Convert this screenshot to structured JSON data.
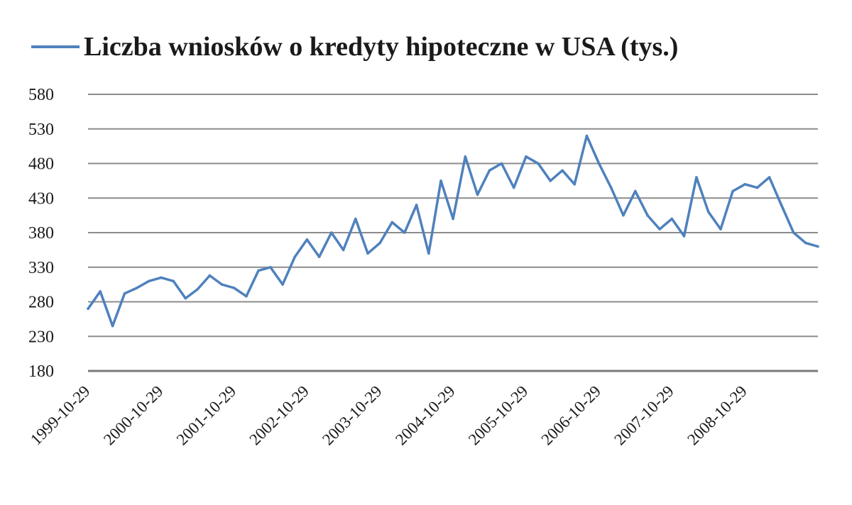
{
  "chart_data": {
    "type": "line",
    "title": "",
    "xlabel": "",
    "ylabel": "",
    "ylim": [
      180,
      580
    ],
    "yticks": [
      "180",
      "230",
      "280",
      "330",
      "380",
      "430",
      "480",
      "530",
      "580"
    ],
    "x_tick_labels": [
      "1999-10-29",
      "2000-10-29",
      "2001-10-29",
      "2002-10-29",
      "2003-10-29",
      "2004-10-29",
      "2005-10-29",
      "2006-10-29",
      "2007-10-29",
      "2008-10-29"
    ],
    "grid": true,
    "legend": {
      "position": "top",
      "entries": [
        "Liczba wniosków o kredyty hipoteczne w USA (tys.)"
      ]
    },
    "series": [
      {
        "name": "Liczba wniosków o kredyty hipoteczne w USA (tys.)",
        "color": "#4f81bd",
        "x": [
          "1999-10-29",
          "1999-12-29",
          "2000-02-29",
          "2000-04-29",
          "2000-06-29",
          "2000-08-29",
          "2000-10-29",
          "2000-12-29",
          "2001-02-28",
          "2001-04-29",
          "2001-06-29",
          "2001-08-29",
          "2001-10-29",
          "2001-12-29",
          "2002-02-28",
          "2002-04-29",
          "2002-06-29",
          "2002-08-29",
          "2002-10-29",
          "2002-12-29",
          "2003-02-28",
          "2003-04-29",
          "2003-06-29",
          "2003-08-29",
          "2003-10-29",
          "2003-12-29",
          "2004-02-29",
          "2004-04-29",
          "2004-06-29",
          "2004-08-29",
          "2004-10-29",
          "2004-12-29",
          "2005-02-28",
          "2005-04-29",
          "2005-06-29",
          "2005-08-29",
          "2005-10-29",
          "2005-12-29",
          "2006-02-28",
          "2006-04-29",
          "2006-06-29",
          "2006-08-29",
          "2006-10-29",
          "2006-12-29",
          "2007-02-28",
          "2007-04-29",
          "2007-06-29",
          "2007-08-29",
          "2007-10-29",
          "2007-12-29",
          "2008-02-29",
          "2008-04-29",
          "2008-06-29",
          "2008-08-29",
          "2008-10-29",
          "2008-12-29",
          "2009-02-28",
          "2009-04-29",
          "2009-06-29",
          "2009-08-29",
          "2009-10-29"
        ],
        "values": [
          270,
          295,
          245,
          292,
          300,
          310,
          315,
          310,
          285,
          298,
          318,
          305,
          300,
          288,
          325,
          330,
          305,
          345,
          370,
          345,
          380,
          355,
          400,
          350,
          365,
          395,
          380,
          420,
          350,
          455,
          400,
          490,
          435,
          470,
          480,
          445,
          490,
          480,
          455,
          470,
          450,
          520,
          480,
          445,
          405,
          440,
          405,
          385,
          400,
          375,
          460,
          410,
          385,
          440,
          450,
          445,
          460,
          420,
          380,
          365,
          360
        ]
      }
    ]
  }
}
